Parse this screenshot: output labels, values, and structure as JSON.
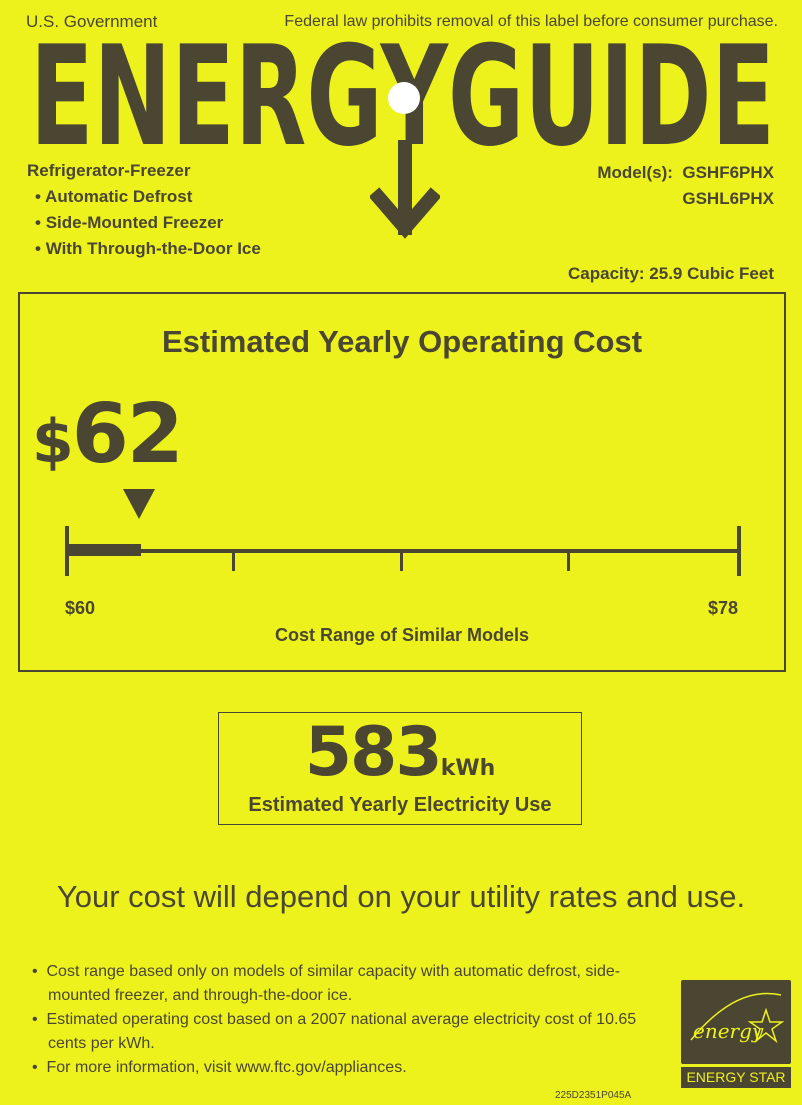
{
  "header": {
    "government": "U.S. Government",
    "notice": "Federal law prohibits removal of this label before consumer purchase."
  },
  "title": "ENERGYGUIDE",
  "appliance": {
    "type": "Refrigerator-Freezer",
    "features": [
      "Automatic Defrost",
      "Side-Mounted Freezer",
      "With Through-the-Door Ice"
    ]
  },
  "models": {
    "label": "Model(s):",
    "values": [
      "GSHF6PHX",
      "GSHL6PHX"
    ]
  },
  "capacity": "Capacity: 25.9 Cubic Feet",
  "cost": {
    "title": "Estimated Yearly Operating Cost",
    "currency": "$",
    "value": "62",
    "range_low": "$60",
    "range_high": "$78",
    "range_label": "Cost Range of Similar Models",
    "position_fraction": 0.11
  },
  "electricity": {
    "value": "583",
    "unit": "kWh",
    "label": "Estimated Yearly Electricity Use"
  },
  "depend": "Your cost will depend on your utility rates and use.",
  "notes": [
    "Cost range based only on models of similar capacity with automatic defrost, side-mounted freezer, and through-the-door ice.",
    "Estimated operating cost based on a 2007 national average electricity cost of 10.65 cents per kWh.",
    "For more information, visit www.ftc.gov/appliances."
  ],
  "code": "225D2351P045A",
  "energy_star": {
    "script": "energy",
    "label": "ENERGY STAR"
  },
  "colors": {
    "background": "#eef21c",
    "ink": "#4a4632"
  }
}
